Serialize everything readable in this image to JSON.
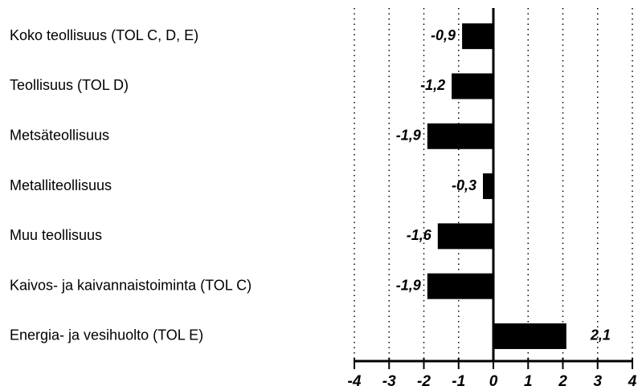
{
  "chart_data": {
    "type": "bar",
    "orientation": "horizontal",
    "categories": [
      "Koko teollisuus (TOL C, D, E)",
      "Teollisuus (TOL D)",
      "Metsäteollisuus",
      "Metalliteollisuus",
      "Muu teollisuus",
      "Kaivos- ja kaivannaistoiminta (TOL C)",
      "Energia- ja vesihuolto (TOL E)"
    ],
    "values": [
      -0.9,
      -1.2,
      -1.9,
      -0.3,
      -1.6,
      -1.9,
      2.1
    ],
    "value_labels": [
      "-0,9",
      "-1,2",
      "-1,9",
      "-0,3",
      "-1,6",
      "-1,9",
      "2,1"
    ],
    "color": "#000000",
    "xlim": [
      -4,
      4
    ],
    "xticks": [
      -4,
      -3,
      -2,
      -1,
      0,
      1,
      2,
      3,
      4
    ],
    "grid": true
  }
}
